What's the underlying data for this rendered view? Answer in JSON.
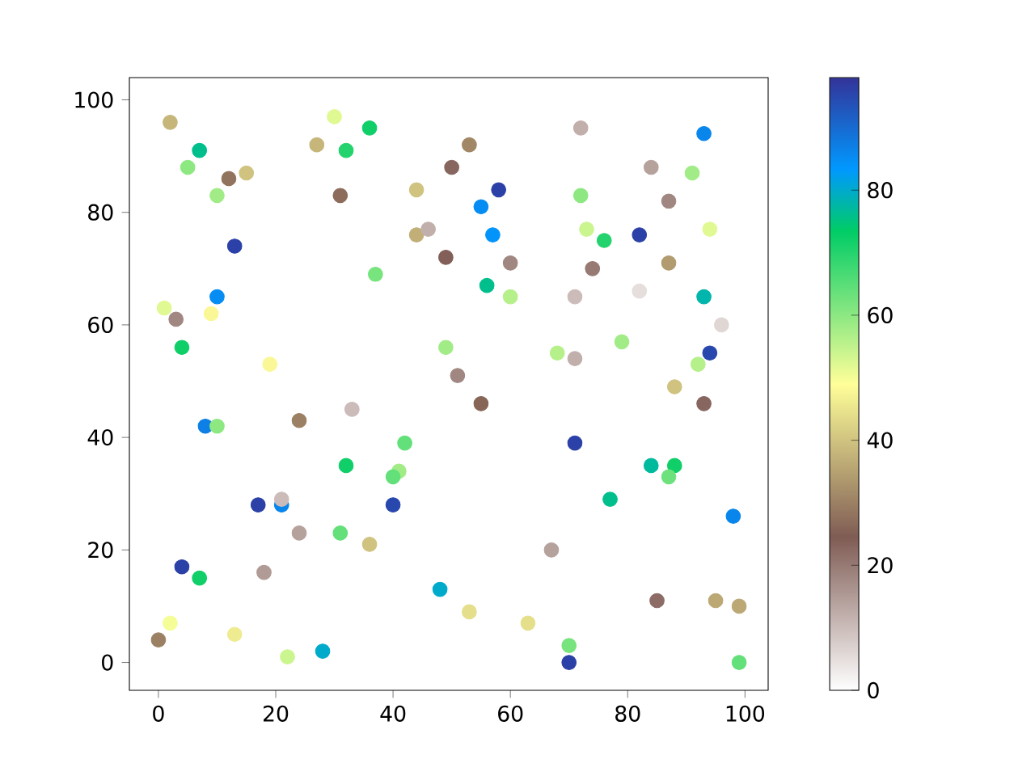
{
  "chart_data": {
    "type": "scatter",
    "marker": "circle",
    "grid": false,
    "xlim": [
      -4.95,
      103.95
    ],
    "ylim": [
      -4.95,
      103.95
    ],
    "xticks": [
      0,
      20,
      40,
      60,
      80,
      100
    ],
    "yticks": [
      0,
      20,
      40,
      60,
      80,
      100
    ],
    "clim": [
      0,
      98
    ],
    "cticks": [
      0,
      20,
      40,
      60,
      80
    ],
    "x": [
      2,
      7,
      5,
      12,
      15,
      10,
      30,
      27,
      36,
      32,
      31,
      13,
      44,
      37,
      44,
      46,
      49,
      53,
      50,
      55,
      58,
      57,
      60,
      56,
      60,
      72,
      72,
      73,
      76,
      74,
      82,
      84,
      87,
      91,
      93,
      94,
      87,
      71,
      82,
      93,
      96,
      68,
      71,
      79,
      88,
      92,
      94,
      93,
      49,
      51,
      55,
      1,
      3,
      4,
      10,
      9,
      19,
      8,
      10,
      24,
      33,
      42,
      41,
      40,
      32,
      17,
      21,
      21,
      40,
      24,
      31,
      36,
      4,
      7,
      18,
      2,
      0,
      13,
      22,
      28,
      48,
      53,
      63,
      67,
      70,
      70,
      71,
      77,
      84,
      88,
      87,
      85,
      95,
      99,
      98,
      99
    ],
    "values": [
      96,
      91,
      88,
      86,
      87,
      83,
      97,
      92,
      95,
      91,
      83,
      74,
      84,
      69,
      76,
      77,
      72,
      92,
      88,
      81,
      84,
      76,
      71,
      67,
      65,
      95,
      83,
      77,
      75,
      70,
      76,
      88,
      82,
      87,
      94,
      77,
      71,
      65,
      66,
      65,
      60,
      55,
      54,
      57,
      49,
      53,
      55,
      46,
      56,
      51,
      46,
      63,
      61,
      56,
      65,
      62,
      53,
      42,
      42,
      43,
      45,
      39,
      34,
      33,
      35,
      28,
      28,
      29,
      28,
      23,
      23,
      21,
      17,
      15,
      16,
      7,
      4,
      5,
      1,
      2,
      13,
      9,
      7,
      20,
      3,
      0,
      39,
      29,
      35,
      35,
      33,
      11,
      11,
      10,
      26,
      0
    ],
    "cvalues": [
      38,
      76,
      60,
      28,
      40,
      58,
      52,
      38,
      72,
      70,
      27,
      96,
      40,
      62,
      37,
      12,
      24,
      31,
      23,
      85,
      96,
      84,
      18,
      76,
      56,
      12,
      60,
      54,
      70,
      20,
      96,
      14,
      18,
      58,
      86,
      52,
      34,
      10,
      5,
      78,
      6,
      56,
      12,
      58,
      40,
      56,
      95,
      23,
      58,
      18,
      26,
      52,
      18,
      72,
      85,
      48,
      48,
      87,
      60,
      30,
      10,
      64,
      58,
      64,
      72,
      96,
      86,
      10,
      95,
      14,
      64,
      40,
      96,
      72,
      15,
      50,
      30,
      46,
      54,
      80,
      80,
      44,
      44,
      14,
      62,
      96,
      96,
      76,
      77,
      72,
      63,
      22,
      36,
      36,
      86,
      64
    ]
  }
}
